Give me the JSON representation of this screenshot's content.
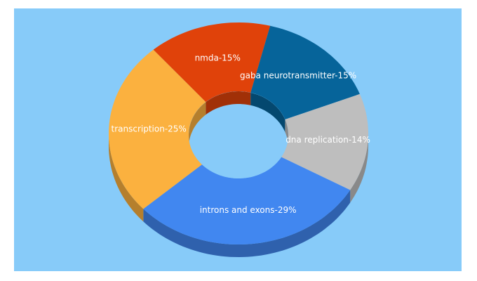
{
  "chart_data": {
    "type": "pie",
    "values": [
      15,
      15,
      14,
      29,
      25
    ],
    "value_labels": [
      "nmda-15%",
      "gaba neurotransmitter-15%",
      "dna replication-14%",
      "introns and exons-29%",
      "transcription-25%"
    ],
    "colors": [
      "#e0420a",
      "#06649a",
      "#bebebe",
      "#4187f0",
      "#fbb13f"
    ],
    "donut": true
  }
}
